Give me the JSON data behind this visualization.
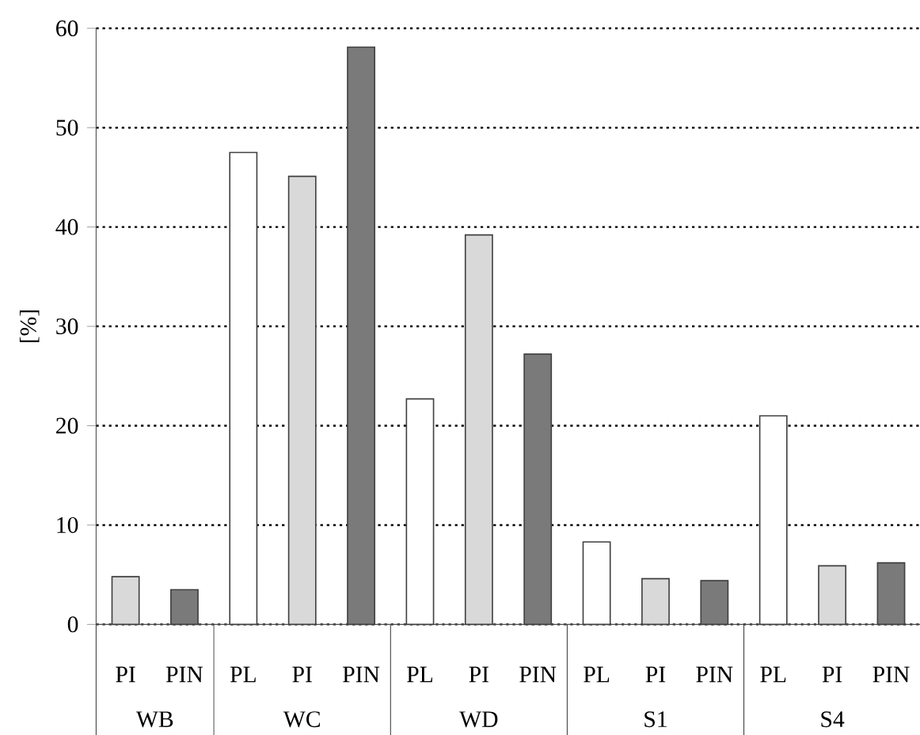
{
  "chart_data": {
    "type": "bar",
    "ylabel": "[%]",
    "categories": [
      "WB",
      "WC",
      "WD",
      "S1",
      "S4"
    ],
    "series": [
      {
        "name": "PL",
        "color": "#ffffff",
        "values": [
          null,
          47.5,
          22.7,
          8.3,
          21.0
        ]
      },
      {
        "name": "PI",
        "color": "#d9d9d9",
        "values": [
          4.8,
          45.1,
          39.2,
          4.6,
          5.9
        ]
      },
      {
        "name": "PIN",
        "color": "#7a7a7a",
        "values": [
          3.5,
          58.1,
          27.2,
          4.4,
          6.2
        ]
      }
    ],
    "ylim": [
      0,
      60
    ],
    "yticks": [
      0,
      10,
      20,
      30,
      40,
      50,
      60
    ],
    "grid": "y"
  }
}
